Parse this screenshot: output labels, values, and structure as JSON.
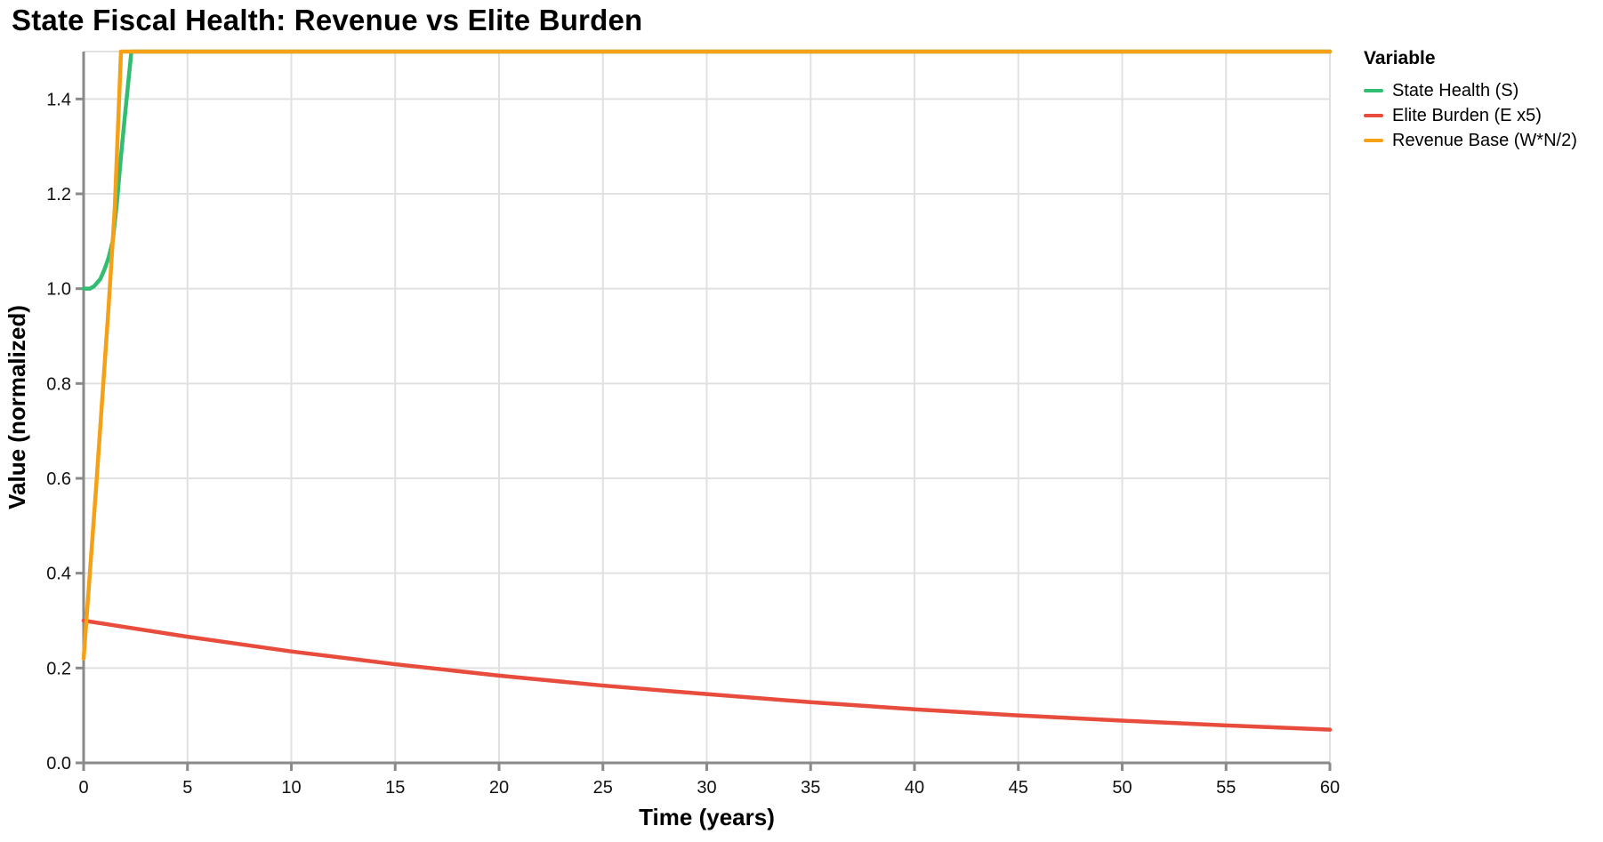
{
  "chart_data": {
    "type": "line",
    "title": "State Fiscal Health: Revenue vs Elite Burden",
    "xlabel": "Time (years)",
    "ylabel": "Value (normalized)",
    "xlim": [
      0,
      60
    ],
    "ylim": [
      0,
      1.5
    ],
    "x_ticks": [
      0,
      5,
      10,
      15,
      20,
      25,
      30,
      35,
      40,
      45,
      50,
      55,
      60
    ],
    "y_ticks": [
      0,
      0.2,
      0.4,
      0.6,
      0.8,
      1.0,
      1.2,
      1.4
    ],
    "y_tick_labels": [
      "0.0",
      "0.2",
      "0.4",
      "0.6",
      "0.8",
      "1.0",
      "1.2",
      "1.4"
    ],
    "grid": true,
    "clip_max": 1.5,
    "legend": {
      "title": "Variable",
      "position": "right-top-outside"
    },
    "series": [
      {
        "name": "State Health (S)",
        "color": "#33BD72",
        "points": [
          [
            0,
            1.0
          ],
          [
            0.3,
            1.0
          ],
          [
            0.5,
            1.005
          ],
          [
            0.8,
            1.02
          ],
          [
            1.0,
            1.04
          ],
          [
            1.2,
            1.065
          ],
          [
            1.4,
            1.1
          ],
          [
            1.6,
            1.18
          ],
          [
            1.8,
            1.28
          ],
          [
            2.0,
            1.37
          ],
          [
            2.3,
            1.5
          ],
          [
            60,
            1.5
          ]
        ]
      },
      {
        "name": "Elite Burden (E x5)",
        "color": "#E74C3C",
        "points": [
          [
            0,
            0.3
          ],
          [
            5,
            0.266
          ],
          [
            10,
            0.235
          ],
          [
            15,
            0.208
          ],
          [
            20,
            0.184
          ],
          [
            25,
            0.163
          ],
          [
            30,
            0.145
          ],
          [
            35,
            0.128
          ],
          [
            40,
            0.113
          ],
          [
            45,
            0.1
          ],
          [
            50,
            0.089
          ],
          [
            55,
            0.079
          ],
          [
            60,
            0.07
          ]
        ]
      },
      {
        "name": "Revenue Base (W*N/2)",
        "color": "#F5A118",
        "points": [
          [
            0,
            0.22
          ],
          [
            0.3,
            0.4
          ],
          [
            0.6,
            0.58
          ],
          [
            0.9,
            0.77
          ],
          [
            1.2,
            0.96
          ],
          [
            1.5,
            1.17
          ],
          [
            1.8,
            1.5
          ],
          [
            60,
            1.5
          ]
        ]
      }
    ]
  },
  "style": {
    "background": "#FFFFFF",
    "grid_color": "#E1E1E1",
    "axis_color": "#8A8A8A",
    "text_color": "#111111"
  }
}
